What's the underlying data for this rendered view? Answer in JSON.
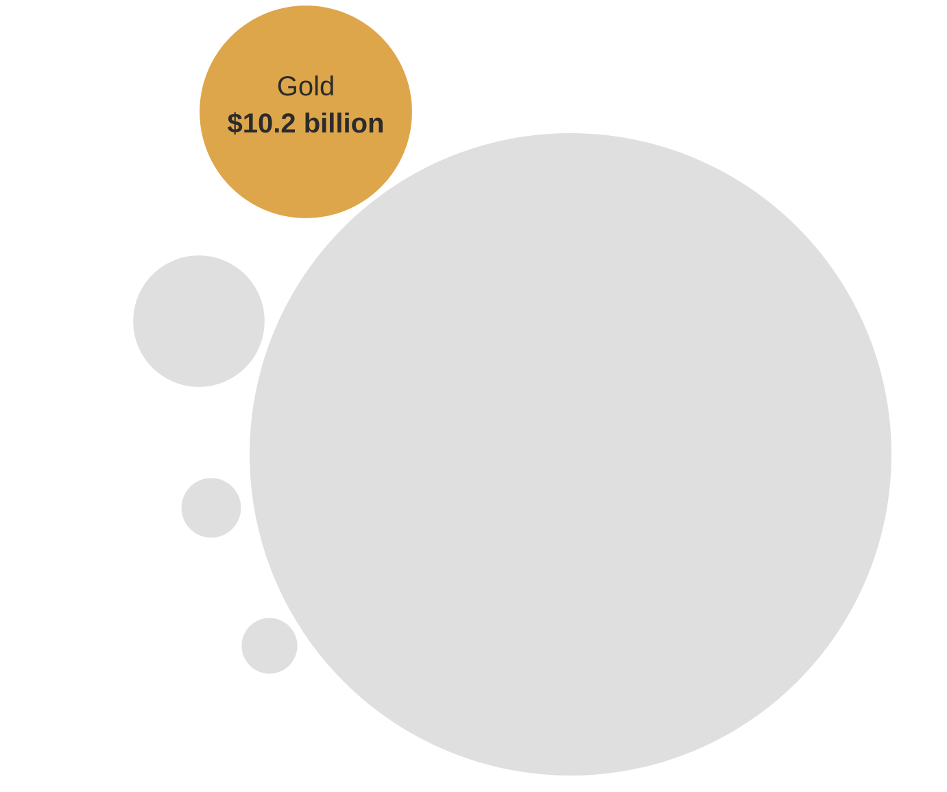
{
  "chart_data": {
    "type": "bubble",
    "title": "",
    "highlight_color": "#DEA64A",
    "base_color": "#DFDFDF",
    "label_color": "#2B2B2B",
    "bubbles": [
      {
        "name": "Gold",
        "value_label": "$10.2 billion",
        "value": 10.2,
        "highlighted": true
      },
      {
        "name": "",
        "value_label": "",
        "value": 93.1,
        "highlighted": false
      },
      {
        "name": "",
        "value_label": "",
        "value": 3.9,
        "highlighted": false
      },
      {
        "name": "",
        "value_label": "",
        "value": 0.8,
        "highlighted": false
      },
      {
        "name": "",
        "value_label": "",
        "value": 0.7,
        "highlighted": false
      }
    ]
  }
}
